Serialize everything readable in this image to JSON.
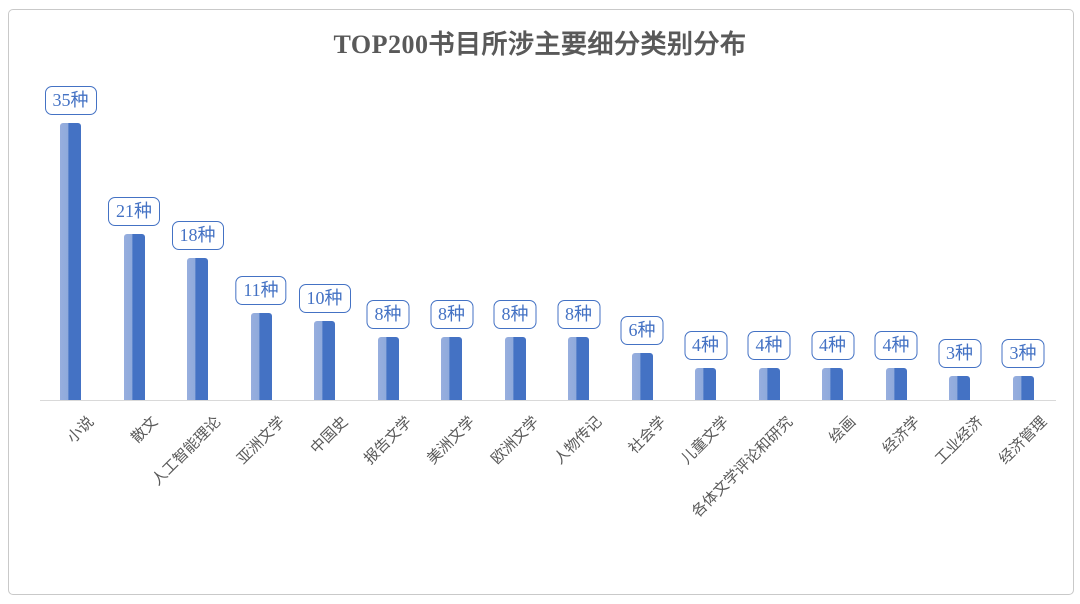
{
  "chart": {
    "title": "TOP200书目所涉主要细分类别分布"
  },
  "chart_data": {
    "type": "bar",
    "title": "TOP200书目所涉主要细分类别分布",
    "categories": [
      "小说",
      "散文",
      "人工智能理论",
      "亚洲文学",
      "中国史",
      "报告文学",
      "美洲文学",
      "欧洲文学",
      "人物传记",
      "社会学",
      "儿童文学",
      "各体文学评论和研究",
      "绘画",
      "经济学",
      "工业经济",
      "经济管理"
    ],
    "values": [
      35,
      21,
      18,
      11,
      10,
      8,
      8,
      8,
      8,
      6,
      4,
      4,
      4,
      4,
      3,
      3
    ],
    "data_labels": [
      "35种",
      "21种",
      "18种",
      "11种",
      "10种",
      "8种",
      "8种",
      "8种",
      "8种",
      "6种",
      "4种",
      "4种",
      "4种",
      "4种",
      "3种",
      "3种"
    ],
    "unit_suffix": "种",
    "xlabel": "",
    "ylabel": "",
    "ylim": [
      0,
      35
    ],
    "grid": false,
    "legend": false,
    "y_axis_visible": false,
    "colors": {
      "bar_light": "#8FAADC",
      "bar_dark": "#4472C4",
      "value_label_text": "#4472C4",
      "value_label_border": "#4472C4",
      "title_text": "#595959",
      "axis_label_text": "#595959",
      "axis_line": "#D9D9D9",
      "frame_border": "#C9C9C9"
    }
  }
}
